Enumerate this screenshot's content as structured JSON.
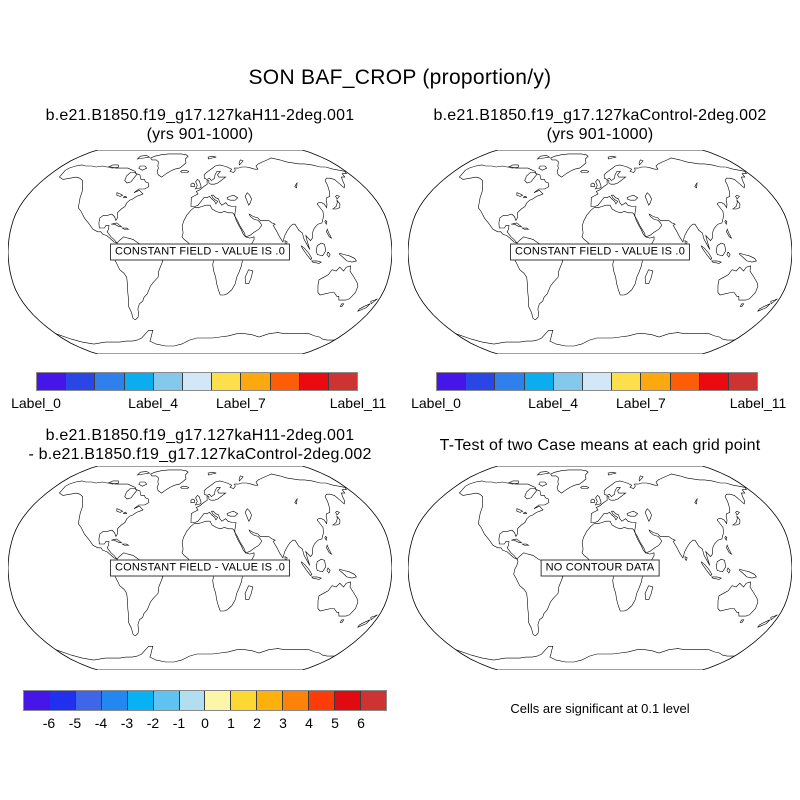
{
  "title": "SON BAF_CROP (proportion/y)",
  "panels": [
    {
      "name": "case1",
      "title_lines": [
        "b.e21.B1850.f19_g17.127kaH11-2deg.001",
        "(yrs 901-1000)"
      ],
      "map_note": "CONSTANT FIELD - VALUE IS .0"
    },
    {
      "name": "case2",
      "title_lines": [
        "b.e21.B1850.f19_g17.127kaControl-2deg.002",
        "(yrs 901-1000)"
      ],
      "map_note": "CONSTANT FIELD - VALUE IS .0"
    },
    {
      "name": "difference",
      "title_lines": [
        "b.e21.B1850.f19_g17.127kaH11-2deg.001",
        "- b.e21.B1850.f19_g17.127kaControl-2deg.002"
      ],
      "map_note": "CONSTANT FIELD - VALUE IS .0"
    },
    {
      "name": "ttest",
      "title_lines": [
        "T-Test of two Case means at each grid point"
      ],
      "map_note": "NO CONTOUR DATA",
      "footnote": "Cells are significant at 0.1 level"
    }
  ],
  "colorbars": {
    "case": {
      "colors": [
        "#4616e8",
        "#2a46e4",
        "#2f80ec",
        "#0cacf0",
        "#84c8ec",
        "#d2e8f8",
        "#fbdf4b",
        "#fda80e",
        "#fd5d08",
        "#ea0a10",
        "#cd3333"
      ],
      "tick_labels": [
        "Label_0",
        "Label_4",
        "Label_7",
        "Label_11"
      ],
      "tick_indices": [
        0,
        4,
        7,
        11
      ]
    },
    "difference": {
      "colors": [
        "#4616e8",
        "#2030ee",
        "#3f66e8",
        "#2387f2",
        "#06b2f4",
        "#5ec3f0",
        "#b2def2",
        "#fdf6a8",
        "#fdd732",
        "#feb00c",
        "#fd8308",
        "#fd3c08",
        "#e00a10",
        "#cd3333"
      ],
      "tick_labels": [
        "-6",
        "-5",
        "-4",
        "-3",
        "-2",
        "-1",
        "0",
        "1",
        "2",
        "3",
        "4",
        "5",
        "6"
      ],
      "tick_indices": [
        1,
        2,
        3,
        4,
        5,
        6,
        7,
        8,
        9,
        10,
        11,
        12,
        13
      ]
    }
  },
  "chart_data": [
    {
      "type": "map-contour",
      "projection": "robinson",
      "title": "b.e21.B1850.f19_g17.127kaH11-2deg.001 (yrs 901-1000)",
      "season": "SON",
      "variable": "BAF_CROP",
      "units": "proportion/y",
      "field_status": "CONSTANT FIELD - VALUE IS .0",
      "constant_value": 0.0,
      "colorbar_tick_labels": [
        "Label_0",
        "Label_4",
        "Label_7",
        "Label_11"
      ]
    },
    {
      "type": "map-contour",
      "projection": "robinson",
      "title": "b.e21.B1850.f19_g17.127kaControl-2deg.002 (yrs 901-1000)",
      "season": "SON",
      "variable": "BAF_CROP",
      "units": "proportion/y",
      "field_status": "CONSTANT FIELD - VALUE IS .0",
      "constant_value": 0.0,
      "colorbar_tick_labels": [
        "Label_0",
        "Label_4",
        "Label_7",
        "Label_11"
      ]
    },
    {
      "type": "map-contour",
      "projection": "robinson",
      "title": "b.e21.B1850.f19_g17.127kaH11-2deg.001 - b.e21.B1850.f19_g17.127kaControl-2deg.002",
      "season": "SON",
      "variable": "BAF_CROP",
      "units": "proportion/y",
      "field_status": "CONSTANT FIELD - VALUE IS .0",
      "constant_value": 0.0,
      "colorbar_ticks": [
        -6,
        -5,
        -4,
        -3,
        -2,
        -1,
        0,
        1,
        2,
        3,
        4,
        5,
        6
      ]
    },
    {
      "type": "map-significance",
      "projection": "robinson",
      "title": "T-Test of two Case means at each grid point",
      "field_status": "NO CONTOUR DATA",
      "significance_note": "Cells are significant at 0.1 level",
      "significance_level": 0.1
    }
  ]
}
